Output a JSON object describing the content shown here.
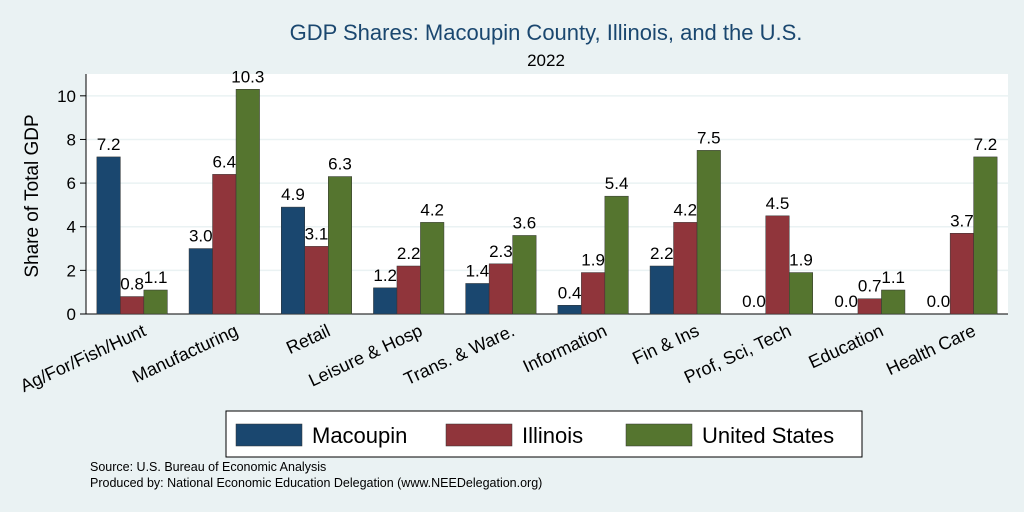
{
  "chart_data": {
    "type": "bar",
    "title": "GDP Shares: Macoupin County, Illinois, and the U.S.",
    "subtitle": "2022",
    "ylabel": "Share of Total GDP",
    "xlabel": "",
    "ylim": [
      0,
      11
    ],
    "yticks": [
      0,
      2,
      4,
      6,
      8,
      10
    ],
    "grid": true,
    "legend_position": "bottom",
    "categories": [
      "Ag/For/Fish/Hunt",
      "Manufacturing",
      "Retail",
      "Leisure & Hosp",
      "Trans. & Ware.",
      "Information",
      "Fin & Ins",
      "Prof, Sci, Tech",
      "Education",
      "Health Care"
    ],
    "series": [
      {
        "name": "Macoupin",
        "color": "#1a476f",
        "values": [
          7.2,
          3.0,
          4.9,
          1.2,
          1.4,
          0.4,
          2.2,
          0.0,
          0.0,
          0.0
        ],
        "labels": [
          "7.2",
          "3.0",
          "4.9",
          "1.2",
          "1.4",
          "0.4",
          "2.2",
          "0.0",
          "0.0",
          "0.0"
        ]
      },
      {
        "name": "Illinois",
        "color": "#90353b",
        "values": [
          0.8,
          6.4,
          3.1,
          2.2,
          2.3,
          1.9,
          4.2,
          4.5,
          0.7,
          3.7
        ],
        "labels": [
          "0.8",
          "6.4",
          "3.1",
          "2.2",
          "2.3",
          "1.9",
          "4.2",
          "4.5",
          "0.7",
          "3.7"
        ]
      },
      {
        "name": "United States",
        "color": "#55752f",
        "values": [
          1.1,
          10.3,
          6.3,
          4.2,
          3.6,
          5.4,
          7.5,
          1.9,
          1.1,
          7.2
        ],
        "labels": [
          "1.1",
          "10.3",
          "6.3",
          "4.2",
          "3.6",
          "5.4",
          "7.5",
          "1.9",
          "1.1",
          "7.2"
        ]
      }
    ],
    "notes": [
      "Source: U.S. Bureau of Economic Analysis",
      "Produced by: National Economic Education Delegation (www.NEEDelegation.org)"
    ]
  }
}
